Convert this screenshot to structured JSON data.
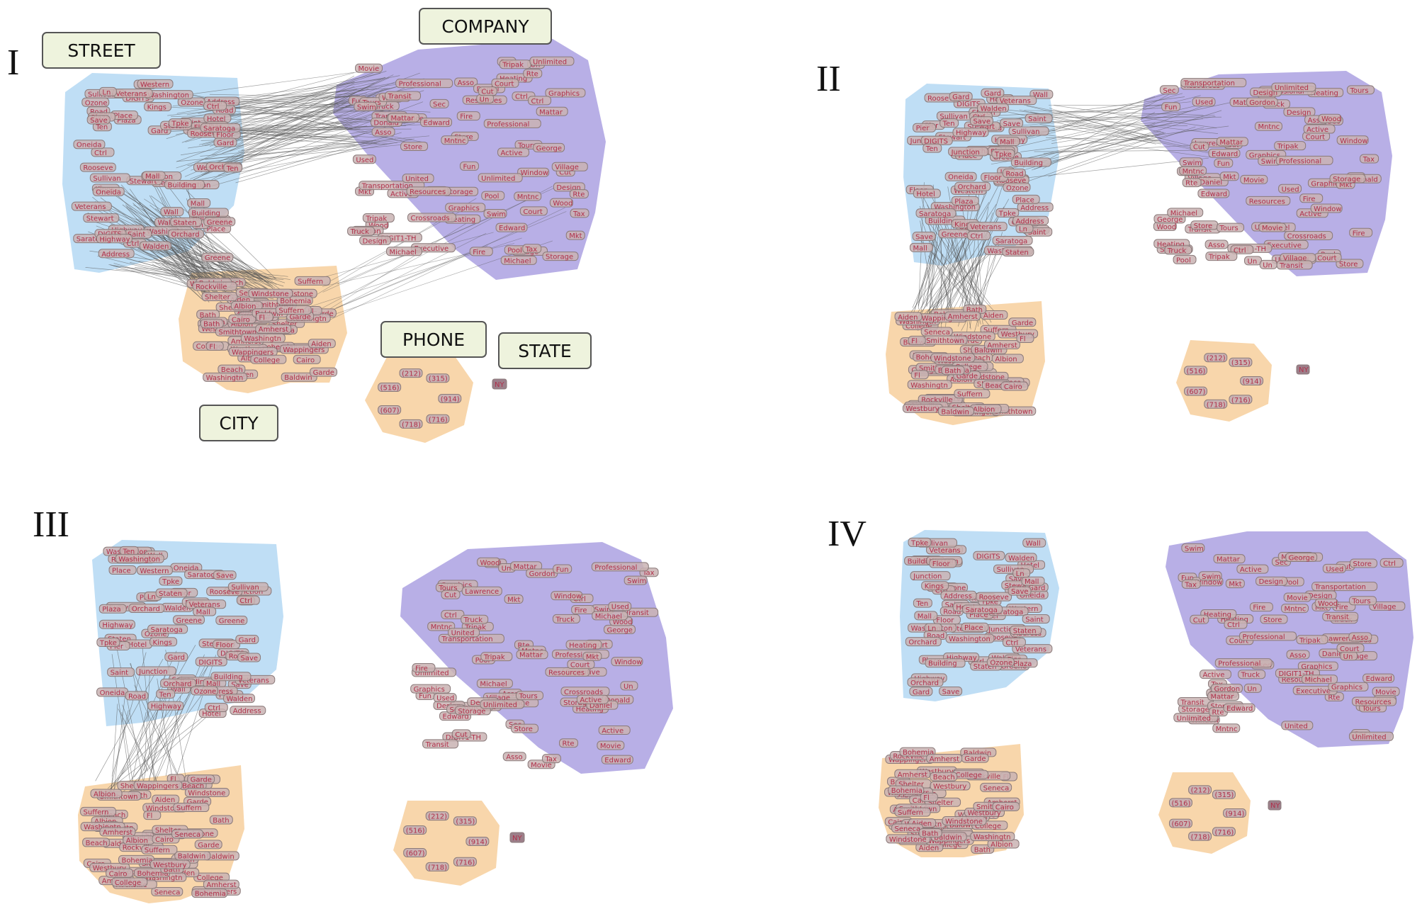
{
  "panels": [
    {
      "id": "p1",
      "label": "I",
      "edges": "heavy",
      "categories": true
    },
    {
      "id": "p2",
      "label": "II",
      "edges": "medium",
      "categories": false
    },
    {
      "id": "p3",
      "label": "III",
      "edges": "light",
      "categories": false
    },
    {
      "id": "p4",
      "label": "IV",
      "edges": "none",
      "categories": false
    }
  ],
  "categories": {
    "street": "STREET",
    "company": "COMPANY",
    "phone": "PHONE",
    "state": "STATE",
    "city": "CITY"
  },
  "colors": {
    "street": "#a9d3f2",
    "company": "#a69be0",
    "city": "#f7cf9c",
    "phone": "#f7cf9c",
    "node_fill": "#c9b3b3",
    "node_text": "#b0304a",
    "edge": "#555555"
  },
  "labels": {
    "street": [
      "Ctrl",
      "Save",
      "Hotel",
      "Greene",
      "Stewart",
      "Saint",
      "Kings",
      "Pier",
      "Western",
      "DIGITS",
      "Wall",
      "Washington",
      "Place",
      "Rooseve",
      "Oneida",
      "Sullivan",
      "Floor",
      "Road",
      "Plaza",
      "Veterans",
      "Highway",
      "Junction",
      "Address",
      "Walden",
      "Orchard",
      "Saratoga",
      "Tpke",
      "Ten",
      "Gard",
      "Building",
      "Staten",
      "Mall",
      "Ozone",
      "Ln"
    ],
    "company": [
      "Mntnc",
      "Fun",
      "Movie",
      "Village",
      "Sec",
      "Store",
      "Resources",
      "Pool",
      "Asso",
      "Heating",
      "Design",
      "Graphics",
      "Un",
      "Tours",
      "Window",
      "Mattar",
      "Storage",
      "Tax",
      "Wood",
      "Used",
      "Ctrl",
      "Tripak",
      "Court",
      "Mkt",
      "Truck",
      "Transit",
      "Rte",
      "Swim",
      "Unlimited",
      "Cut",
      "Fire",
      "Michael",
      "Active",
      "Professional",
      "Edward",
      "Donald",
      "Transportation",
      "George",
      "Gordon",
      "Crossroads",
      "Daniel",
      "United",
      "Executive",
      "Lawrence",
      "DIGIT1-TH"
    ],
    "city": [
      "Rockville",
      "College",
      "Shelter",
      "Beach",
      "Wappingers",
      "Bohemia",
      "Aiden",
      "Westbury",
      "Seneca",
      "Smithtown",
      "Windstone",
      "Albion",
      "Cairo",
      "Baldwin",
      "Garde",
      "Washingtn",
      "Suffern",
      "Amherst",
      "Bath",
      "Fl"
    ],
    "phone": [
      "(914)",
      "(716)",
      "(718)",
      "(607)",
      "(516)",
      "(212)",
      "(315)"
    ],
    "state": "NY"
  }
}
